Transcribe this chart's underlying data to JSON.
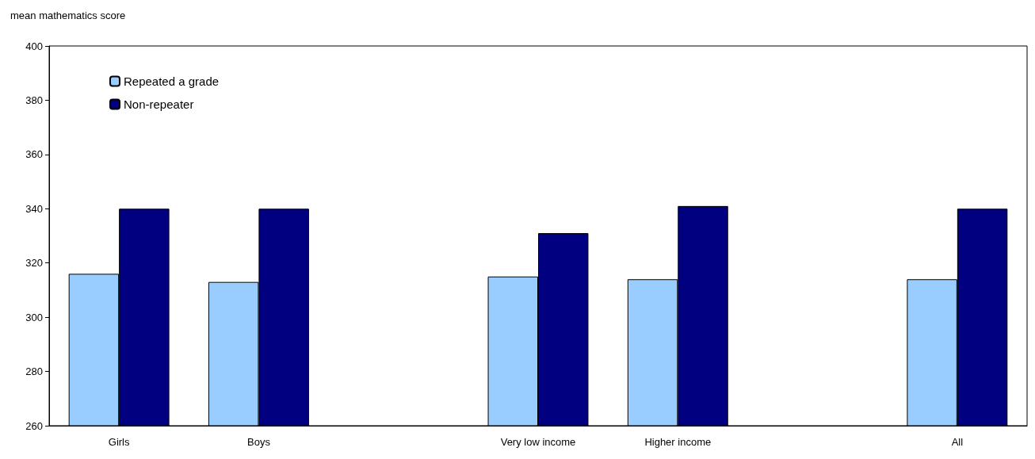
{
  "chart_data": {
    "type": "bar",
    "ylabel": "mean mathematics score",
    "categories": [
      "Girls",
      "Boys",
      null,
      "Very low income",
      "Higher income",
      null,
      "All"
    ],
    "series": [
      {
        "name": "Repeated a grade",
        "color": "#99ccff",
        "values": [
          316,
          313,
          null,
          315,
          314,
          null,
          314
        ]
      },
      {
        "name": "Non-repeater",
        "color": "#000080",
        "values": [
          340,
          340,
          null,
          331,
          341,
          null,
          340
        ]
      }
    ],
    "ylim": [
      260,
      400
    ],
    "yticks": [
      260,
      280,
      300,
      320,
      340,
      360,
      380,
      400
    ],
    "grid": false,
    "legend": "top left"
  }
}
